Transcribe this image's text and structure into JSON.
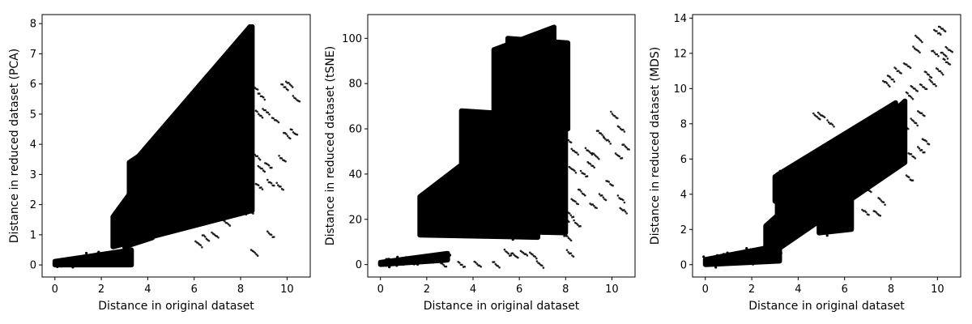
{
  "chart_data": [
    {
      "type": "scatter",
      "xlabel": "Distance in original dataset",
      "ylabel": "Distance in reduced dataset (PCA)",
      "xlim": [
        -0.55,
        11.0
      ],
      "ylim": [
        -0.4,
        8.3
      ],
      "xticks": [
        0,
        2,
        4,
        6,
        8,
        10
      ],
      "yticks": [
        0,
        1,
        2,
        3,
        4,
        5,
        6,
        7,
        8
      ],
      "grid": false,
      "series": [
        {
          "color": "#000000",
          "regions": [
            {
              "x": [
                0.0,
                3.3
              ],
              "y_lo": [
                0.0,
                0.0
              ],
              "y_hi": [
                0.12,
                0.5
              ]
            },
            {
              "x": [
                2.5,
                8.5
              ],
              "y_lo": [
                0.6,
                1.8
              ],
              "y_hi": [
                1.6,
                7.9
              ]
            },
            {
              "x": [
                3.6,
                8.4
              ],
              "y_lo": [
                1.5,
                6.0
              ],
              "y_hi": [
                3.6,
                7.9
              ]
            },
            {
              "x": [
                3.2,
                6.5
              ],
              "y_lo": [
                2.0,
                3.9
              ],
              "y_hi": [
                3.4,
                5.1
              ]
            },
            {
              "x": [
                3.0,
                4.2
              ],
              "y_lo": [
                0.6,
                0.9
              ],
              "y_hi": [
                1.3,
                2.2
              ]
            }
          ],
          "points": [
            [
              9.9,
              5.9
            ],
            [
              10.1,
              6.0
            ],
            [
              10.4,
              5.5
            ],
            [
              10.3,
              4.4
            ],
            [
              10.0,
              4.3
            ],
            [
              9.5,
              4.8
            ],
            [
              9.8,
              3.5
            ],
            [
              9.7,
              2.6
            ],
            [
              9.3,
              2.7
            ],
            [
              8.8,
              2.6
            ],
            [
              8.4,
              1.8
            ],
            [
              8.1,
              1.75
            ],
            [
              8.6,
              0.4
            ],
            [
              9.3,
              1.0
            ],
            [
              9.1,
              5.1
            ],
            [
              8.8,
              5.0
            ],
            [
              8.4,
              4.6
            ],
            [
              8.9,
              5.6
            ],
            [
              8.6,
              5.9
            ],
            [
              8.1,
              4.4
            ],
            [
              7.9,
              4.0
            ],
            [
              7.4,
              3.7
            ],
            [
              7.7,
              3.3
            ],
            [
              7.2,
              3.0
            ],
            [
              7.6,
              2.5
            ],
            [
              8.0,
              2.3
            ],
            [
              7.5,
              2.0
            ],
            [
              7.0,
              2.2
            ],
            [
              6.8,
              1.8
            ],
            [
              7.4,
              1.4
            ],
            [
              6.9,
              1.0
            ],
            [
              6.5,
              0.9
            ],
            [
              6.2,
              0.7
            ],
            [
              8.9,
              3.2
            ],
            [
              9.2,
              3.3
            ],
            [
              8.7,
              3.6
            ],
            [
              7.8,
              5.2
            ],
            [
              8.3,
              5.5
            ]
          ]
        }
      ]
    },
    {
      "type": "scatter",
      "xlabel": "Distance in original dataset",
      "ylabel": "Distance in reduced dataset (tSNE)",
      "xlim": [
        -0.55,
        11.0
      ],
      "ylim": [
        -5.5,
        110.5
      ],
      "xticks": [
        0,
        2,
        4,
        6,
        8,
        10
      ],
      "yticks": [
        0,
        20,
        40,
        60,
        80,
        100
      ],
      "grid": false,
      "series": [
        {
          "color": "#000000",
          "regions": [
            {
              "x": [
                1.7,
                6.8
              ],
              "y_lo": [
                13,
                12
              ],
              "y_hi": [
                30,
                70
              ]
            },
            {
              "x": [
                3.5,
                8.0
              ],
              "y_lo": [
                15,
                14
              ],
              "y_hi": [
                68,
                65
              ]
            },
            {
              "x": [
                4.9,
                7.5
              ],
              "y_lo": [
                30,
                40
              ],
              "y_hi": [
                95,
                105
              ]
            },
            {
              "x": [
                5.5,
                8.1
              ],
              "y_lo": [
                50,
                60
              ],
              "y_hi": [
                100,
                98
              ]
            },
            {
              "x": [
                0.0,
                2.9
              ],
              "y_lo": [
                0,
                2
              ],
              "y_hi": [
                1,
                5
              ]
            }
          ],
          "points": [
            [
              10.1,
              66
            ],
            [
              10.4,
              60
            ],
            [
              10.6,
              52
            ],
            [
              10.3,
              48
            ],
            [
              9.8,
              55
            ],
            [
              9.5,
              58
            ],
            [
              9.3,
              48
            ],
            [
              9.0,
              50
            ],
            [
              9.1,
              44
            ],
            [
              8.8,
              40
            ],
            [
              9.9,
              36
            ],
            [
              10.4,
              29
            ],
            [
              10.5,
              24
            ],
            [
              9.6,
              30
            ],
            [
              9.2,
              26
            ],
            [
              8.7,
              32
            ],
            [
              8.4,
              28
            ],
            [
              8.2,
              22
            ],
            [
              8.5,
              18
            ],
            [
              8.0,
              20
            ],
            [
              7.6,
              24
            ],
            [
              7.3,
              18
            ],
            [
              7.8,
              14
            ],
            [
              8.1,
              12
            ],
            [
              8.2,
              5
            ],
            [
              7.1,
              28
            ],
            [
              8.1,
              55
            ],
            [
              8.4,
              50
            ],
            [
              7.7,
              45
            ],
            [
              8.3,
              42
            ],
            [
              7.4,
              40
            ],
            [
              6.6,
              4
            ],
            [
              6.2,
              5
            ],
            [
              5.8,
              4
            ],
            [
              5.5,
              5
            ],
            [
              3.5,
              0
            ],
            [
              4.2,
              0
            ],
            [
              5.0,
              0
            ],
            [
              6.9,
              0
            ],
            [
              2.7,
              0
            ]
          ]
        }
      ]
    },
    {
      "type": "scatter",
      "xlabel": "Distance in original dataset",
      "ylabel": "Distance in reduced dataset (MDS)",
      "xlim": [
        -0.55,
        11.0
      ],
      "ylim": [
        -0.7,
        14.2
      ],
      "xticks": [
        0,
        2,
        4,
        6,
        8,
        10
      ],
      "yticks": [
        0,
        2,
        4,
        6,
        8,
        10,
        12,
        14
      ],
      "grid": false,
      "series": [
        {
          "color": "#000000",
          "regions": [
            {
              "x": [
                0.0,
                3.2
              ],
              "y_lo": [
                0.0,
                0.2
              ],
              "y_hi": [
                0.3,
                1.1
              ]
            },
            {
              "x": [
                2.6,
                8.6
              ],
              "y_lo": [
                0.4,
                5.8
              ],
              "y_hi": [
                2.2,
                9.3
              ]
            },
            {
              "x": [
                3.1,
                8.2
              ],
              "y_lo": [
                1.5,
                7.0
              ],
              "y_hi": [
                5.1,
                9.2
              ]
            },
            {
              "x": [
                3.0,
                5.5
              ],
              "y_lo": [
                3.6,
                5.2
              ],
              "y_hi": [
                5.0,
                6.6
              ]
            },
            {
              "x": [
                4.9,
                6.3
              ],
              "y_lo": [
                1.8,
                2.0
              ],
              "y_hi": [
                4.6,
                6.5
              ]
            }
          ],
          "points": [
            [
              10.0,
              13.2
            ],
            [
              10.2,
              13.4
            ],
            [
              10.3,
              11.9
            ],
            [
              10.5,
              12.2
            ],
            [
              10.4,
              11.5
            ],
            [
              9.9,
              12.0
            ],
            [
              10.1,
              11.0
            ],
            [
              9.2,
              12.8
            ],
            [
              9.1,
              12.2
            ],
            [
              8.7,
              11.3
            ],
            [
              8.3,
              11.0
            ],
            [
              8.0,
              10.6
            ],
            [
              7.8,
              10.3
            ],
            [
              9.6,
              10.8
            ],
            [
              9.8,
              10.3
            ],
            [
              9.4,
              10.1
            ],
            [
              9.0,
              10.0
            ],
            [
              8.8,
              9.6
            ],
            [
              9.3,
              8.6
            ],
            [
              9.0,
              8.1
            ],
            [
              8.6,
              7.9
            ],
            [
              8.3,
              7.2
            ],
            [
              9.5,
              7.0
            ],
            [
              9.3,
              6.5
            ],
            [
              8.9,
              6.2
            ],
            [
              8.2,
              6.8
            ],
            [
              7.8,
              6.1
            ],
            [
              7.3,
              5.1
            ],
            [
              7.0,
              4.3
            ],
            [
              7.6,
              3.6
            ],
            [
              6.9,
              3.0
            ],
            [
              7.4,
              2.9
            ],
            [
              8.8,
              4.9
            ],
            [
              5.0,
              8.5
            ],
            [
              5.4,
              8.0
            ],
            [
              4.8,
              8.4
            ]
          ]
        }
      ]
    }
  ]
}
